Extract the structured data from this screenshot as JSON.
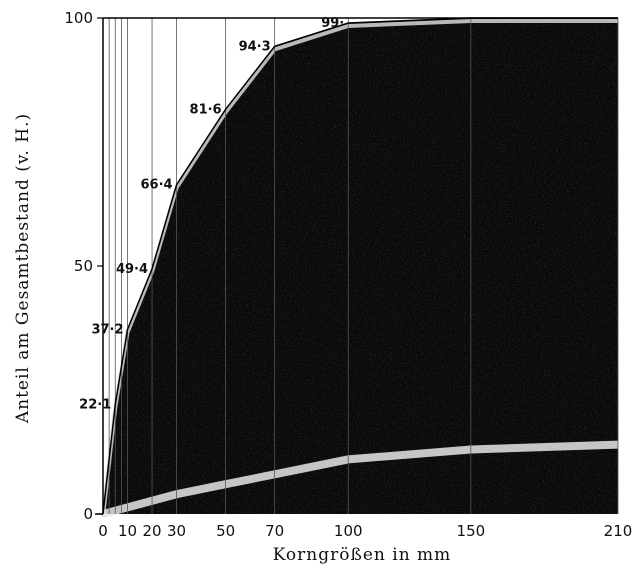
{
  "chart_data": {
    "type": "area",
    "title": "",
    "xlabel": "Korngrößen in mm",
    "ylabel": "Anteil am Gesamtbestand (v. H.)",
    "xlim": [
      0,
      210
    ],
    "ylim": [
      0,
      100
    ],
    "x_ticks": [
      0,
      10,
      20,
      30,
      50,
      70,
      100,
      150,
      210
    ],
    "y_ticks": [
      0,
      50,
      100
    ],
    "grid": "vertical",
    "fill_color": "#0a0a0a",
    "series": [
      {
        "x": [
          0,
          5,
          10,
          20,
          30,
          50,
          70,
          100,
          150,
          210
        ],
        "values": [
          0,
          22.1,
          37.2,
          49.4,
          66.4,
          81.6,
          94.3,
          99,
          100,
          100
        ]
      }
    ],
    "data_labels": [
      {
        "x": 5,
        "y": 22.1,
        "text": "22·1"
      },
      {
        "x": 10,
        "y": 37.2,
        "text": "37·2"
      },
      {
        "x": 20,
        "y": 49.4,
        "text": "49·4"
      },
      {
        "x": 30,
        "y": 66.4,
        "text": "66·4"
      },
      {
        "x": 50,
        "y": 81.6,
        "text": "81·6"
      },
      {
        "x": 70,
        "y": 94.3,
        "text": "94·3"
      },
      {
        "x": 100,
        "y": 99,
        "text": "99·"
      }
    ]
  }
}
